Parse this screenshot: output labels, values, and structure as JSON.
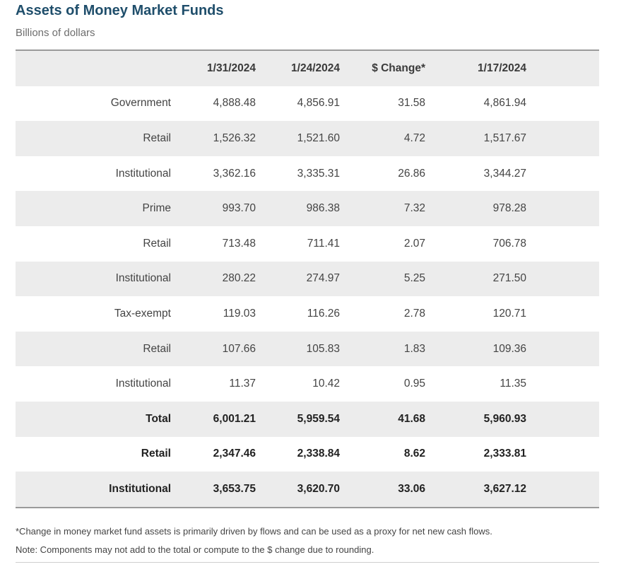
{
  "title": "Assets of Money Market Funds",
  "subtitle": "Billions of dollars",
  "footnotes": {
    "change_note": "*Change in money market fund assets is primarily driven by flows and can be used as a proxy for net new cash flows.",
    "rounding_note": "Note: Components may not add to the total or compute to the $ change due to rounding."
  },
  "chart_data": {
    "type": "table",
    "title": "Assets of Money Market Funds",
    "subtitle": "Billions of dollars",
    "columns": [
      "",
      "1/31/2024",
      "1/24/2024",
      "$ Change*",
      "1/17/2024"
    ],
    "rows": [
      {
        "label": "Government",
        "level": 0,
        "bold": false,
        "values": [
          "4,888.48",
          "4,856.91",
          "31.58",
          "4,861.94"
        ]
      },
      {
        "label": "Retail",
        "level": 1,
        "bold": false,
        "values": [
          "1,526.32",
          "1,521.60",
          "4.72",
          "1,517.67"
        ]
      },
      {
        "label": "Institutional",
        "level": 1,
        "bold": false,
        "values": [
          "3,362.16",
          "3,335.31",
          "26.86",
          "3,344.27"
        ]
      },
      {
        "label": "Prime",
        "level": 0,
        "bold": false,
        "values": [
          "993.70",
          "986.38",
          "7.32",
          "978.28"
        ]
      },
      {
        "label": "Retail",
        "level": 1,
        "bold": false,
        "values": [
          "713.48",
          "711.41",
          "2.07",
          "706.78"
        ]
      },
      {
        "label": "Institutional",
        "level": 1,
        "bold": false,
        "values": [
          "280.22",
          "274.97",
          "5.25",
          "271.50"
        ]
      },
      {
        "label": "Tax-exempt",
        "level": 0,
        "bold": false,
        "values": [
          "119.03",
          "116.26",
          "2.78",
          "120.71"
        ]
      },
      {
        "label": "Retail",
        "level": 1,
        "bold": false,
        "values": [
          "107.66",
          "105.83",
          "1.83",
          "109.36"
        ]
      },
      {
        "label": "Institutional",
        "level": 1,
        "bold": false,
        "values": [
          "11.37",
          "10.42",
          "0.95",
          "11.35"
        ]
      },
      {
        "label": "Total",
        "level": 0,
        "bold": true,
        "values": [
          "6,001.21",
          "5,959.54",
          "41.68",
          "5,960.93"
        ]
      },
      {
        "label": "Retail",
        "level": 1,
        "bold": true,
        "values": [
          "2,347.46",
          "2,338.84",
          "8.62",
          "2,333.81"
        ]
      },
      {
        "label": "Institutional",
        "level": 1,
        "bold": true,
        "values": [
          "3,653.75",
          "3,620.70",
          "33.06",
          "3,627.12"
        ]
      }
    ]
  }
}
